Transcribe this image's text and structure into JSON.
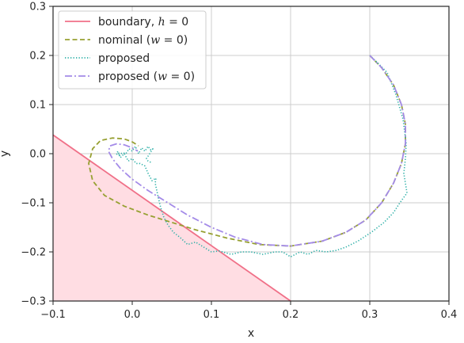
{
  "chart_data": {
    "type": "line",
    "title": "",
    "xlabel": "x",
    "ylabel": "y",
    "xlim": [
      -0.1,
      0.4
    ],
    "ylim": [
      -0.3,
      0.3
    ],
    "xticks": [
      -0.1,
      0.0,
      0.1,
      0.2,
      0.3,
      0.4
    ],
    "yticks": [
      -0.3,
      -0.2,
      -0.1,
      0.0,
      0.1,
      0.2,
      0.3
    ],
    "xtick_labels": [
      "−0.1",
      "0.0",
      "0.1",
      "0.2",
      "0.3",
      "0.4"
    ],
    "ytick_labels": [
      "−0.3",
      "−0.2",
      "−0.1",
      "0.0",
      "0.1",
      "0.2",
      "0.3"
    ],
    "grid": true,
    "legend_position": "top-left",
    "unsafe_region": {
      "color": "#ffdde3",
      "polygon": [
        [
          -0.1,
          0.038
        ],
        [
          -0.1,
          -0.3
        ],
        [
          0.2,
          -0.3
        ]
      ]
    },
    "series": [
      {
        "name": "boundary, h = 0",
        "style": "solid",
        "color": "#f07088",
        "x": [
          -0.1,
          0.2
        ],
        "y": [
          0.038,
          -0.3
        ]
      },
      {
        "name": "nominal  (w = 0)",
        "style": "dashed",
        "color": "#97a032",
        "x": [
          0.3,
          0.315,
          0.33,
          0.34,
          0.345,
          0.345,
          0.34,
          0.33,
          0.315,
          0.295,
          0.27,
          0.24,
          0.2,
          0.16,
          0.12,
          0.08,
          0.05,
          0.02,
          -0.01,
          -0.035,
          -0.05,
          -0.055,
          -0.05,
          -0.04,
          -0.025,
          -0.01,
          0.0,
          0.008
        ],
        "y": [
          0.2,
          0.175,
          0.14,
          0.1,
          0.06,
          0.02,
          -0.02,
          -0.06,
          -0.1,
          -0.135,
          -0.16,
          -0.178,
          -0.188,
          -0.185,
          -0.172,
          -0.155,
          -0.14,
          -0.125,
          -0.107,
          -0.085,
          -0.055,
          -0.02,
          0.01,
          0.027,
          0.032,
          0.03,
          0.024,
          0.016
        ]
      },
      {
        "name": "proposed",
        "style": "dotted",
        "color": "#2fb0a8",
        "x": [
          0.3,
          0.31,
          0.322,
          0.333,
          0.342,
          0.346,
          0.345,
          0.343,
          0.347,
          0.338,
          0.33,
          0.318,
          0.302,
          0.285,
          0.27,
          0.258,
          0.245,
          0.232,
          0.222,
          0.212,
          0.2,
          0.19,
          0.18,
          0.165,
          0.15,
          0.138,
          0.125,
          0.11,
          0.1,
          0.09,
          0.08,
          0.07,
          0.06,
          0.052,
          0.045,
          0.04,
          0.036,
          0.033,
          0.031,
          0.029,
          0.03,
          0.025,
          0.02,
          0.016,
          0.01,
          0.005,
          0.0,
          -0.005,
          -0.01,
          -0.015,
          -0.018,
          -0.02,
          -0.018,
          -0.012,
          -0.008,
          -0.004,
          0.0,
          0.004,
          0.008,
          0.012,
          0.016,
          0.02,
          0.023,
          0.026,
          0.022,
          0.018,
          0.02,
          0.024
        ],
        "y": [
          0.2,
          0.185,
          0.165,
          0.12,
          0.07,
          0.02,
          -0.01,
          -0.04,
          -0.08,
          -0.1,
          -0.12,
          -0.14,
          -0.16,
          -0.178,
          -0.19,
          -0.197,
          -0.2,
          -0.197,
          -0.205,
          -0.2,
          -0.21,
          -0.2,
          -0.2,
          -0.205,
          -0.2,
          -0.2,
          -0.205,
          -0.198,
          -0.2,
          -0.19,
          -0.18,
          -0.185,
          -0.17,
          -0.16,
          -0.145,
          -0.13,
          -0.11,
          -0.09,
          -0.075,
          -0.06,
          -0.05,
          -0.055,
          -0.04,
          -0.025,
          -0.02,
          -0.02,
          -0.01,
          -0.015,
          0.0,
          -0.008,
          0.005,
          0.0,
          -0.003,
          0.002,
          0.0,
          0.01,
          0.005,
          0.015,
          0.0,
          0.012,
          0.005,
          0.015,
          0.008,
          0.01,
          0.0,
          -0.01,
          -0.015,
          -0.018
        ]
      },
      {
        "name": "proposed (w = 0)",
        "style": "dashdot",
        "color": "#a48be8",
        "x": [
          0.3,
          0.315,
          0.33,
          0.34,
          0.345,
          0.345,
          0.34,
          0.33,
          0.315,
          0.295,
          0.27,
          0.24,
          0.2,
          0.165,
          0.13,
          0.1,
          0.07,
          0.045,
          0.02,
          0.0,
          -0.015,
          -0.025,
          -0.03,
          -0.028,
          -0.02,
          -0.01,
          0.0,
          0.007
        ],
        "y": [
          0.2,
          0.175,
          0.14,
          0.1,
          0.06,
          0.02,
          -0.02,
          -0.06,
          -0.1,
          -0.135,
          -0.16,
          -0.178,
          -0.188,
          -0.185,
          -0.17,
          -0.15,
          -0.125,
          -0.1,
          -0.075,
          -0.052,
          -0.03,
          -0.01,
          0.005,
          0.016,
          0.02,
          0.018,
          0.012,
          0.005
        ]
      }
    ]
  },
  "legend": {
    "items": [
      {
        "prefix": "boundary, ",
        "math": "h",
        "suffix": " = 0"
      },
      {
        "prefix": "nominal  (",
        "math": "w",
        "suffix": " = 0)"
      },
      {
        "prefix": "proposed",
        "math": "",
        "suffix": ""
      },
      {
        "prefix": "proposed (",
        "math": "w",
        "suffix": " = 0)"
      }
    ]
  }
}
